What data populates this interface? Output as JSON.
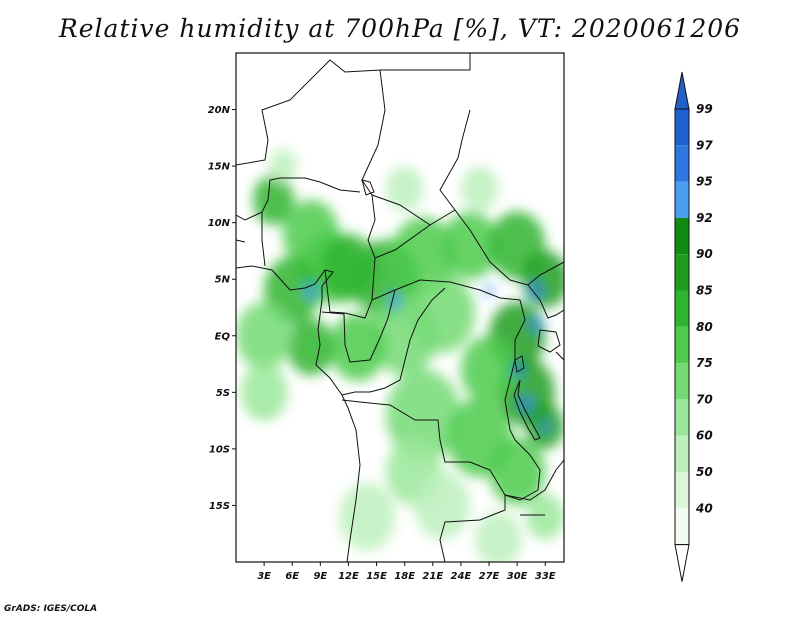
{
  "title": "Relative humidity at 700hPa [%], VT: 2020061206",
  "credit": "GrADS: IGES/COLA",
  "map": {
    "lon_range": [
      0,
      35
    ],
    "lat_range": [
      -20,
      25
    ],
    "lat_ticks": [
      {
        "value": 20,
        "label": "20N"
      },
      {
        "value": 15,
        "label": "15N"
      },
      {
        "value": 10,
        "label": "10N"
      },
      {
        "value": 5,
        "label": "5N"
      },
      {
        "value": 0,
        "label": "EQ"
      },
      {
        "value": -5,
        "label": "5S"
      },
      {
        "value": -10,
        "label": "10S"
      },
      {
        "value": -15,
        "label": "15S"
      }
    ],
    "lon_ticks": [
      {
        "value": 3,
        "label": "3E"
      },
      {
        "value": 6,
        "label": "6E"
      },
      {
        "value": 9,
        "label": "9E"
      },
      {
        "value": 12,
        "label": "12E"
      },
      {
        "value": 15,
        "label": "15E"
      },
      {
        "value": 18,
        "label": "18E"
      },
      {
        "value": 21,
        "label": "21E"
      },
      {
        "value": 24,
        "label": "24E"
      },
      {
        "value": 27,
        "label": "27E"
      },
      {
        "value": 30,
        "label": "30E"
      },
      {
        "value": 33,
        "label": "33E"
      }
    ]
  },
  "colorbar": {
    "levels": [
      {
        "label": "99",
        "color": "#1f5fd0"
      },
      {
        "label": "97",
        "color": "#2c78e0"
      },
      {
        "label": "95",
        "color": "#4a9ff0"
      },
      {
        "label": "92",
        "color": "#118a11"
      },
      {
        "label": "90",
        "color": "#1e9e1e"
      },
      {
        "label": "85",
        "color": "#2eb42e"
      },
      {
        "label": "80",
        "color": "#4ccb4c"
      },
      {
        "label": "75",
        "color": "#74db74"
      },
      {
        "label": "70",
        "color": "#9ae79a"
      },
      {
        "label": "60",
        "color": "#bdf0bd"
      },
      {
        "label": "50",
        "color": "#daf7da"
      },
      {
        "label": "40",
        "color": "#f0fcf0"
      }
    ],
    "top_color": "#2060c8",
    "bottom_color": "#ffffff"
  },
  "humidity_blobs": [
    {
      "lon": 4,
      "lat": 12,
      "r": 2.2,
      "level": 5
    },
    {
      "lon": 8,
      "lat": 9,
      "r": 3.0,
      "level": 6
    },
    {
      "lon": 10,
      "lat": 6,
      "r": 3.2,
      "level": 6
    },
    {
      "lon": 12,
      "lat": 6,
      "r": 3.0,
      "level": 5
    },
    {
      "lon": 6,
      "lat": 4,
      "r": 3.0,
      "level": 5
    },
    {
      "lon": 16,
      "lat": 5,
      "r": 3.5,
      "level": 5
    },
    {
      "lon": 20,
      "lat": 7,
      "r": 3.5,
      "level": 6
    },
    {
      "lon": 25,
      "lat": 8,
      "r": 3.0,
      "level": 6
    },
    {
      "lon": 30,
      "lat": 8,
      "r": 3.0,
      "level": 5
    },
    {
      "lon": 33,
      "lat": 5,
      "r": 2.5,
      "level": 4
    },
    {
      "lon": 30,
      "lat": 0,
      "r": 3.0,
      "level": 4
    },
    {
      "lon": 31,
      "lat": -5,
      "r": 3.0,
      "level": 4
    },
    {
      "lon": 33,
      "lat": -8,
      "r": 2.0,
      "level": 4
    },
    {
      "lon": 27,
      "lat": -3,
      "r": 3.0,
      "level": 6
    },
    {
      "lon": 22,
      "lat": 2,
      "r": 3.5,
      "level": 7
    },
    {
      "lon": 18,
      "lat": 0,
      "r": 3.5,
      "level": 7
    },
    {
      "lon": 13,
      "lat": -1,
      "r": 3.0,
      "level": 6
    },
    {
      "lon": 8,
      "lat": -1,
      "r": 2.5,
      "level": 5
    },
    {
      "lon": 3,
      "lat": 0,
      "r": 3.0,
      "level": 7
    },
    {
      "lon": 3,
      "lat": -5,
      "r": 2.5,
      "level": 8
    },
    {
      "lon": 20,
      "lat": -7,
      "r": 4.0,
      "level": 7
    },
    {
      "lon": 26,
      "lat": -9,
      "r": 3.5,
      "level": 6
    },
    {
      "lon": 30,
      "lat": -12,
      "r": 3.0,
      "level": 6
    },
    {
      "lon": 19,
      "lat": -12,
      "r": 3.0,
      "level": 8
    },
    {
      "lon": 14,
      "lat": -16,
      "r": 3.0,
      "level": 9
    },
    {
      "lon": 22,
      "lat": -15,
      "r": 3.0,
      "level": 9
    },
    {
      "lon": 28,
      "lat": -18,
      "r": 2.5,
      "level": 9
    },
    {
      "lon": 33,
      "lat": -16,
      "r": 2.0,
      "level": 8
    },
    {
      "lon": 5,
      "lat": 15,
      "r": 1.5,
      "level": 9
    },
    {
      "lon": 18,
      "lat": 13,
      "r": 2.0,
      "level": 9
    },
    {
      "lon": 26,
      "lat": 13,
      "r": 2.0,
      "level": 9
    },
    {
      "lon": 17,
      "lat": 3,
      "r": 0.7,
      "level": 2
    },
    {
      "lon": 8,
      "lat": 4,
      "r": 0.7,
      "level": 2
    },
    {
      "lon": 32,
      "lat": 4,
      "r": 0.7,
      "level": 1
    },
    {
      "lon": 32,
      "lat": 1,
      "r": 0.6,
      "level": 1
    },
    {
      "lon": 30,
      "lat": -3,
      "r": 0.6,
      "level": 1
    },
    {
      "lon": 31,
      "lat": -6,
      "r": 0.7,
      "level": 1
    },
    {
      "lon": 33,
      "lat": -8,
      "r": 0.5,
      "level": 1
    },
    {
      "lon": 27,
      "lat": 4,
      "r": 0.5,
      "level": 2
    }
  ]
}
